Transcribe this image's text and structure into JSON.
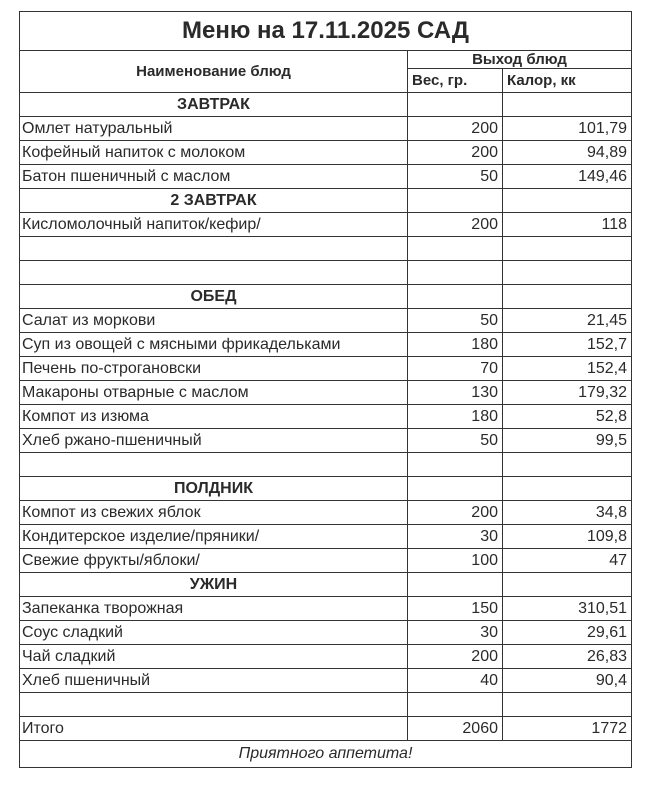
{
  "title": "Меню на 17.11.2025 САД",
  "header": {
    "name": "Наименование блюд",
    "output": "Выход блюд",
    "weight": "Вес, гр.",
    "calories": "Калор, кк"
  },
  "rows": [
    {
      "type": "section",
      "name": "ЗАВТРАК"
    },
    {
      "type": "item",
      "name": "Омлет натуральный",
      "weight": "200",
      "calories": "101,79"
    },
    {
      "type": "item",
      "name": "Кофейный напиток с молоком",
      "weight": "200",
      "calories": "94,89"
    },
    {
      "type": "item",
      "name": "Батон пшеничный с маслом",
      "weight": "50",
      "calories": "149,46"
    },
    {
      "type": "section",
      "name": "2 ЗАВТРАК"
    },
    {
      "type": "item",
      "name": "Кисломолочный напиток/кефир/",
      "weight": "200",
      "calories": "118"
    },
    {
      "type": "empty"
    },
    {
      "type": "empty"
    },
    {
      "type": "section",
      "name": "ОБЕД"
    },
    {
      "type": "item",
      "name": "Салат из моркови",
      "weight": "50",
      "calories": "21,45"
    },
    {
      "type": "item",
      "name": "Суп из овощей с мясными фрикадельками",
      "weight": "180",
      "calories": "152,7"
    },
    {
      "type": "item",
      "name": "Печень по-строгановски",
      "weight": "70",
      "calories": "152,4"
    },
    {
      "type": "item",
      "name": "Макароны отварные с маслом",
      "weight": "130",
      "calories": "179,32"
    },
    {
      "type": "item",
      "name": "Компот из изюма",
      "weight": "180",
      "calories": "52,8"
    },
    {
      "type": "item",
      "name": "Хлеб ржано-пшеничный",
      "weight": "50",
      "calories": "99,5"
    },
    {
      "type": "empty"
    },
    {
      "type": "section",
      "name": "ПОЛДНИК"
    },
    {
      "type": "item",
      "name": "Компот из свежих яблок",
      "weight": "200",
      "calories": "34,8"
    },
    {
      "type": "item",
      "name": "Кондитерское изделие/пряники/",
      "weight": "30",
      "calories": "109,8"
    },
    {
      "type": "item",
      "name": "Свежие фрукты/яблоки/",
      "weight": "100",
      "calories": "47"
    },
    {
      "type": "section",
      "name": "УЖИН"
    },
    {
      "type": "item",
      "name": "Запеканка творожная",
      "weight": "150",
      "calories": "310,51"
    },
    {
      "type": "item",
      "name": "Соус сладкий",
      "weight": "30",
      "calories": "29,61"
    },
    {
      "type": "item",
      "name": "Чай сладкий",
      "weight": "200",
      "calories": "26,83"
    },
    {
      "type": "item",
      "name": "Хлеб пшеничный",
      "weight": "40",
      "calories": "90,4"
    },
    {
      "type": "empty"
    },
    {
      "type": "item",
      "name": "Итого",
      "weight": "2060",
      "calories": "1772"
    }
  ],
  "footer": "Приятного аппетита!"
}
